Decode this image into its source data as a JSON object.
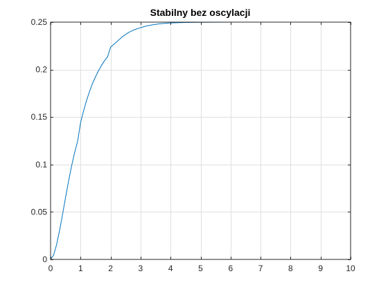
{
  "chart_data": {
    "type": "line",
    "title": "Stabilny bez oscylacji",
    "xlabel": "",
    "ylabel": "",
    "xlim": [
      0,
      10
    ],
    "ylim": [
      0,
      0.25
    ],
    "grid": true,
    "x_ticks": [
      0,
      1,
      2,
      3,
      4,
      5,
      6,
      7,
      8,
      9,
      10
    ],
    "x_tick_labels": [
      "0",
      "1",
      "2",
      "3",
      "4",
      "5",
      "6",
      "7",
      "8",
      "9",
      "10"
    ],
    "y_ticks": [
      0,
      0.05,
      0.1,
      0.15,
      0.2,
      0.25
    ],
    "y_tick_labels": [
      "0",
      "0.05",
      "0.1",
      "0.15",
      "0.2",
      "0.25"
    ],
    "colors": {
      "line": "#0072BD",
      "grid": "#dfdfdf",
      "axis": "#262626"
    },
    "series": [
      {
        "x": [
          0,
          0.1,
          0.2,
          0.3,
          0.4,
          0.5,
          0.6,
          0.7,
          0.8,
          0.9,
          1.0,
          1.1,
          1.2,
          1.3,
          1.4,
          1.5,
          1.6,
          1.7,
          1.8,
          1.9,
          2.0,
          2.2,
          2.4,
          2.6,
          2.8,
          3.0,
          3.2,
          3.4,
          3.6,
          3.8,
          4.0,
          4.5,
          5.0,
          5.5,
          6.0,
          7.0,
          8.0,
          9.0,
          10.0
        ],
        "y": [
          0,
          0.0044,
          0.0155,
          0.0304,
          0.0475,
          0.0654,
          0.0826,
          0.0984,
          0.1123,
          0.1242,
          0.1441,
          0.1565,
          0.1675,
          0.1771,
          0.1856,
          0.1925,
          0.199,
          0.2045,
          0.2094,
          0.2135,
          0.2236,
          0.2291,
          0.2348,
          0.2391,
          0.2421,
          0.2442,
          0.246,
          0.2472,
          0.2481,
          0.2487,
          0.2492,
          0.2496,
          0.2498,
          0.2499,
          0.25,
          0.25,
          0.25,
          0.25,
          0.25
        ]
      }
    ]
  }
}
